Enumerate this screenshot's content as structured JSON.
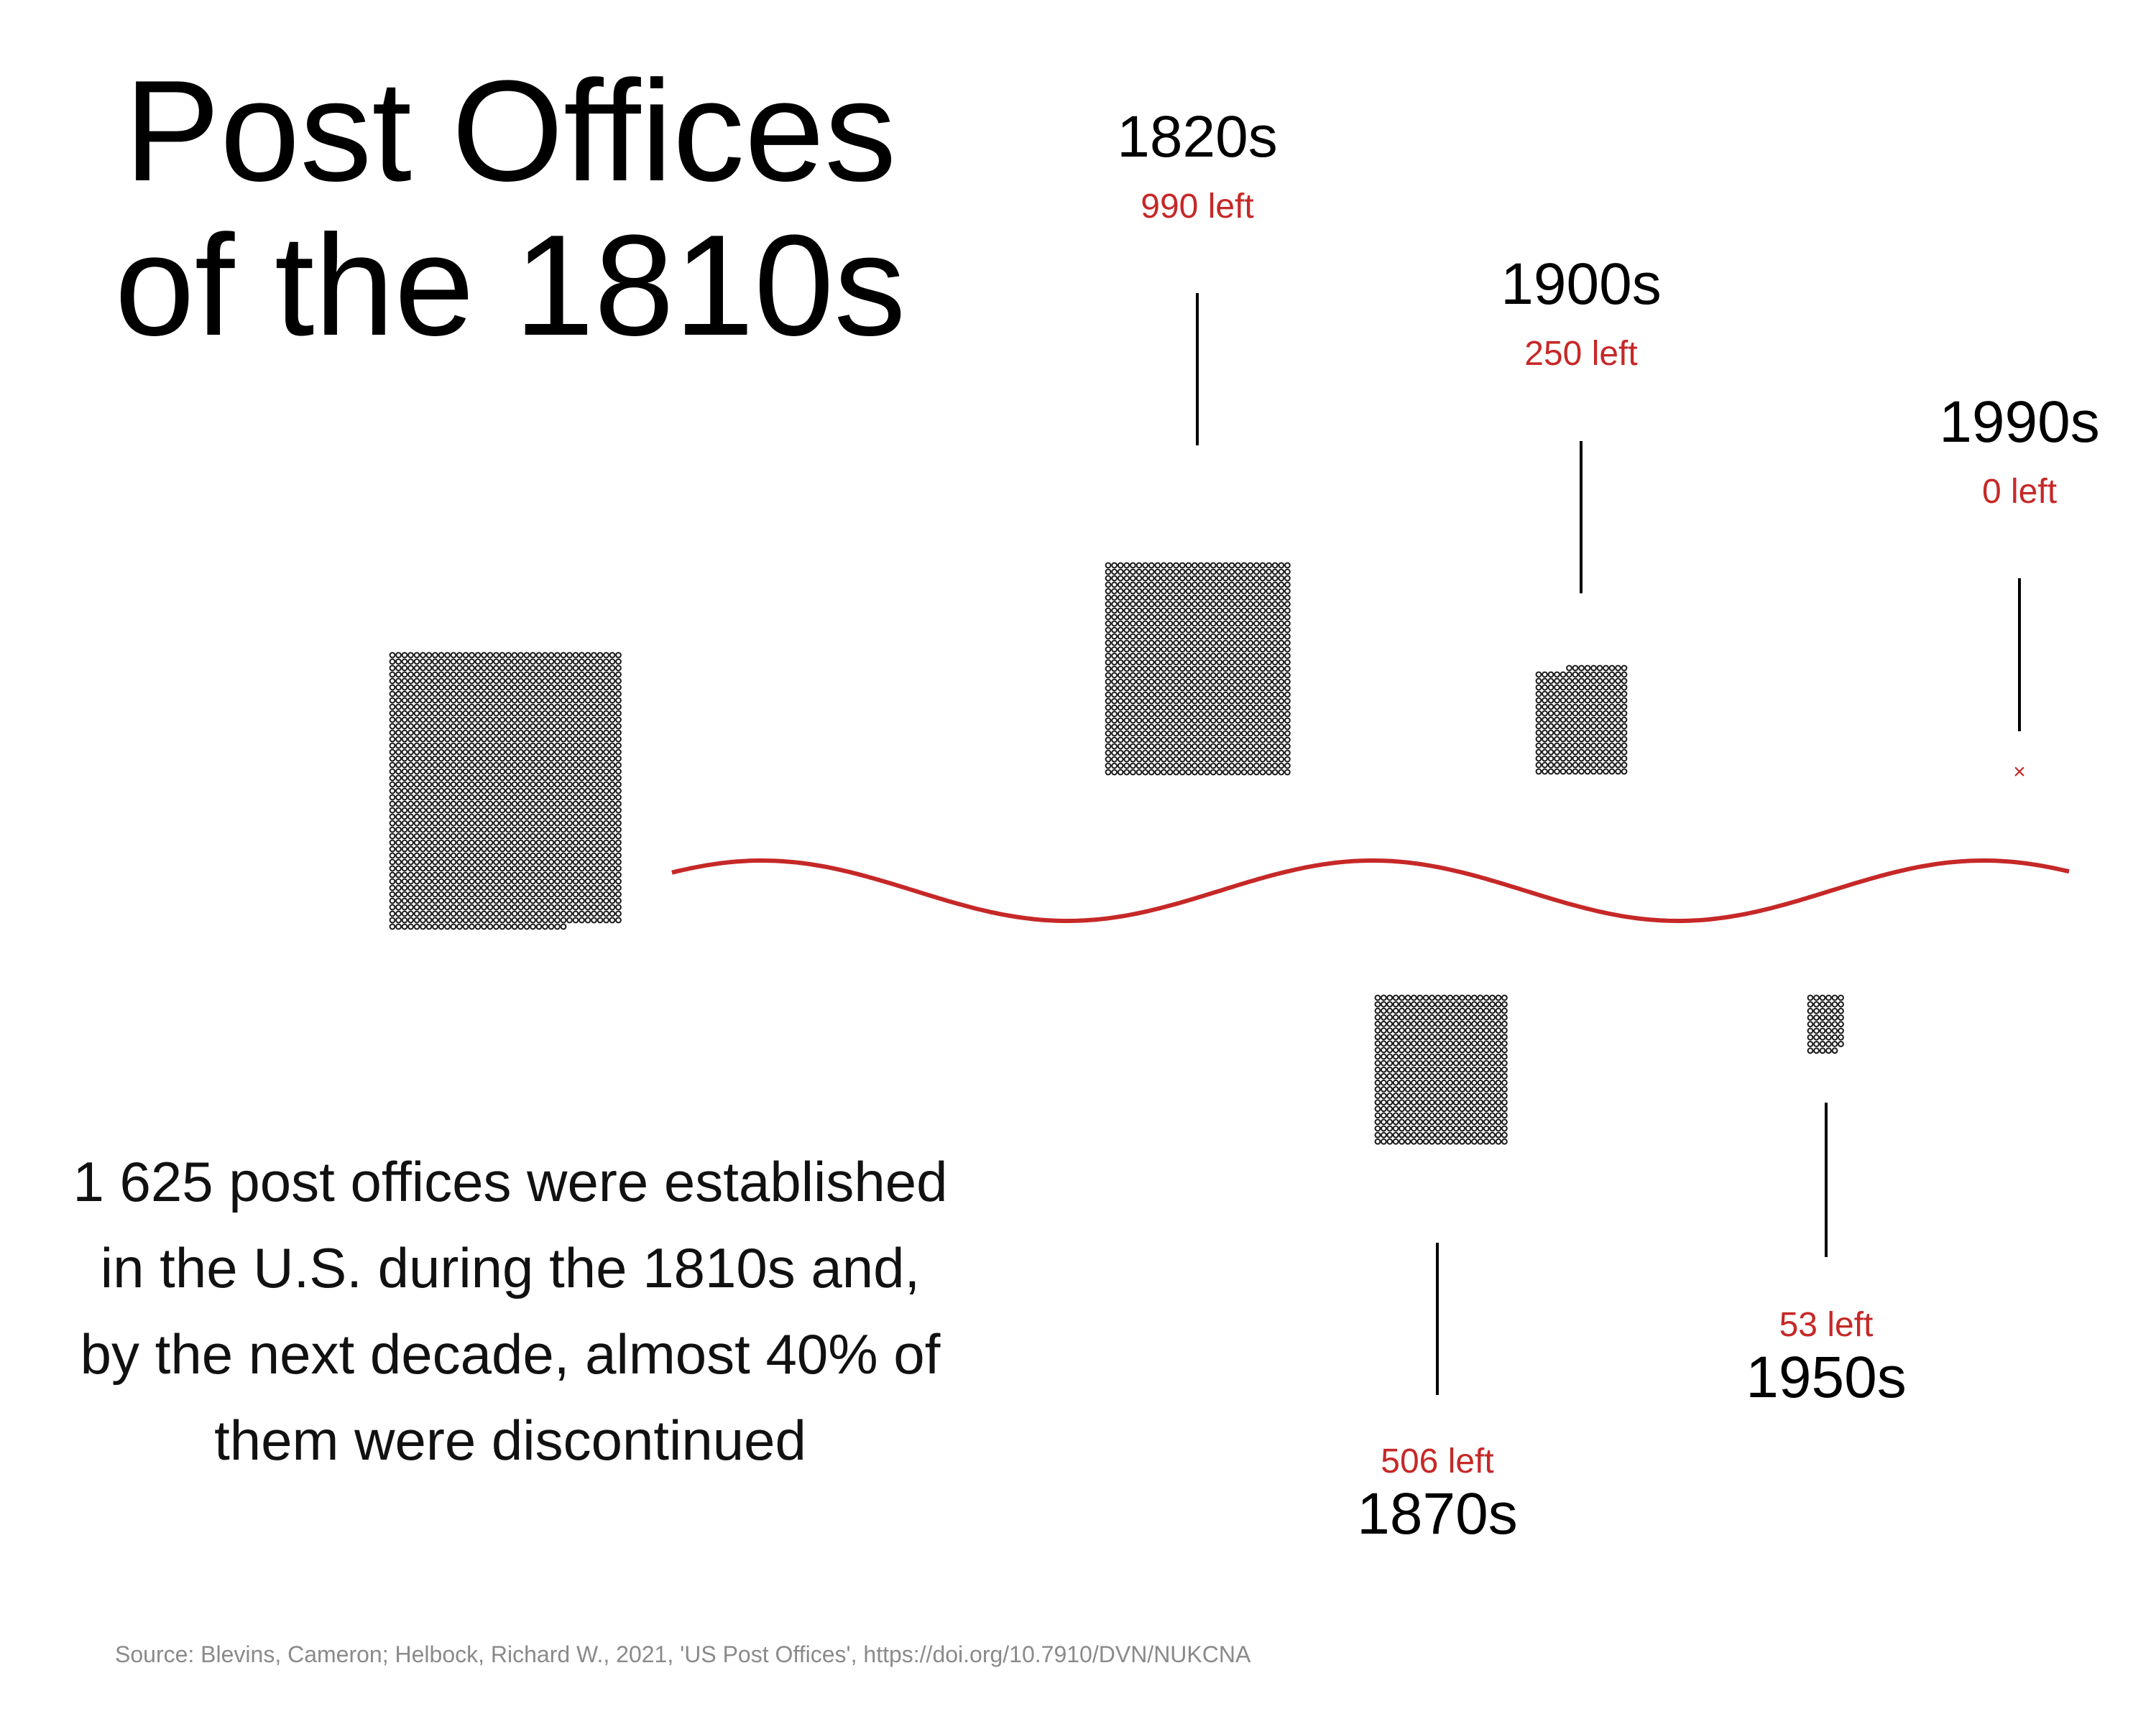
{
  "title": [
    "Post Offices",
    "of the 1810s"
  ],
  "description": [
    "1 625 post offices were established",
    "in the U.S. during the 1810s and,",
    "by the next decade, almost 40% of",
    "them were discontinued"
  ],
  "source": "Source: Blevins, Cameron; Helbock, Richard W., 2021, 'US Post Offices', https://doi.org/10.7910/DVN/NUKCNA",
  "colors": {
    "dots": "#1a1a1a",
    "accent": "#c62828",
    "text": "#000000",
    "source": "#8a8a8a"
  },
  "chart_data": {
    "type": "dot-matrix",
    "initial": {
      "decade": "1810s",
      "value": 1625
    },
    "decades": [
      {
        "decade": "1820s",
        "remaining": 990,
        "label": "990 left",
        "position": "above"
      },
      {
        "decade": "1870s",
        "remaining": 506,
        "label": "506 left",
        "position": "below"
      },
      {
        "decade": "1900s",
        "remaining": 250,
        "label": "250 left",
        "position": "above"
      },
      {
        "decade": "1950s",
        "remaining": 53,
        "label": "53 left",
        "position": "below"
      },
      {
        "decade": "1990s",
        "remaining": 0,
        "label": "0 left",
        "position": "above"
      }
    ],
    "zero_marker": "×"
  }
}
